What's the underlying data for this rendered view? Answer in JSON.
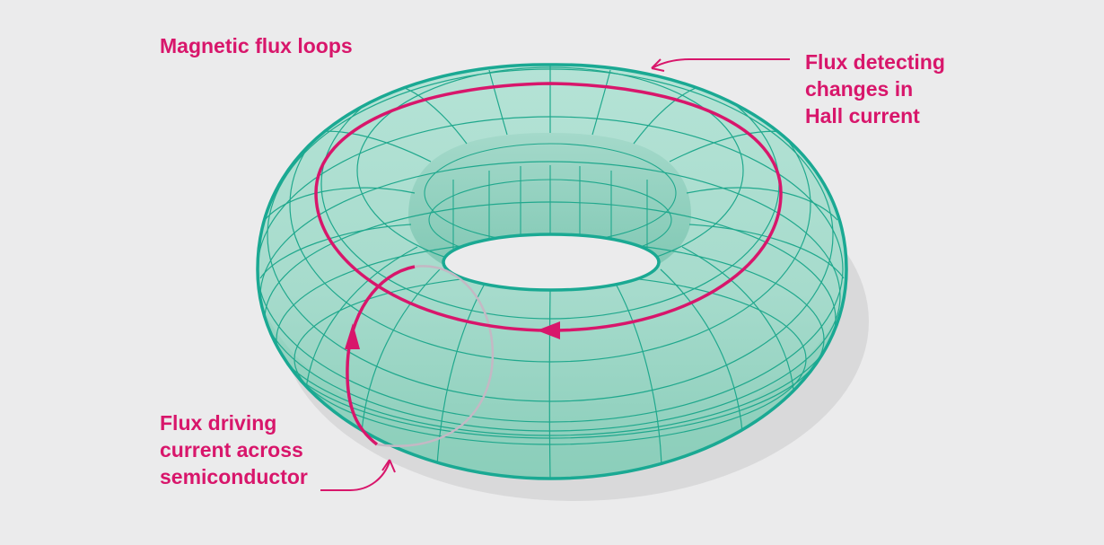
{
  "title": "Magnetic flux loops",
  "annotations": {
    "detecting": {
      "lines": [
        "Flux detecting",
        "changes in",
        "Hall current"
      ]
    },
    "driving": {
      "lines": [
        "Flux driving",
        "current across",
        "semiconductor"
      ]
    }
  },
  "colors": {
    "background": "#ebebec",
    "torus_fill": "#a8dccd",
    "torus_outline": "#1aa993",
    "grid": "#20a88d",
    "flux_loop": "#d8166b",
    "shadow": "#d9d9da"
  }
}
